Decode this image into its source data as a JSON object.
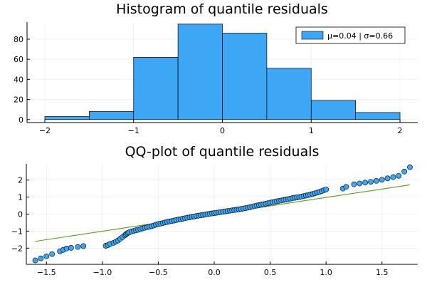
{
  "chart_data": [
    {
      "type": "bar",
      "title": "Histogram of quantile residuals",
      "bin_edges": [
        -2,
        -1.5,
        -1,
        -0.5,
        0,
        0.5,
        1,
        1.5,
        2
      ],
      "values": [
        3,
        8,
        62,
        95,
        86,
        51,
        19,
        7
      ],
      "xlim": [
        -2.2,
        2.2
      ],
      "ylim": [
        -3,
        97
      ],
      "xticks": [
        -2,
        -1,
        0,
        1,
        2
      ],
      "yticks": [
        0,
        20,
        40,
        60,
        80
      ],
      "grid": true,
      "series": [
        {
          "name": "μ=0.04 | σ=0.66",
          "color": "#3da7f5"
        }
      ],
      "legend_position": "top-right"
    },
    {
      "type": "scatter",
      "title": "QQ-plot of quantile residuals",
      "xlim": [
        -1.68,
        1.82
      ],
      "ylim": [
        -2.95,
        2.95
      ],
      "xticks": [
        -1.5,
        -1.0,
        -0.5,
        0.0,
        0.5,
        1.0,
        1.5
      ],
      "yticks": [
        -2,
        -1,
        0,
        1,
        2
      ],
      "grid": true,
      "point_color": "#3da7f5",
      "line_color": "#5a9a1c",
      "reference_line": {
        "x": [
          -1.6,
          1.75
        ],
        "y": [
          -1.6,
          1.72
        ]
      },
      "points": {
        "x": [
          -1.6,
          -1.55,
          -1.5,
          -1.45,
          -1.38,
          -1.35,
          -1.32,
          -1.28,
          -1.22,
          -1.17,
          -0.97,
          -0.95,
          -0.93,
          -0.9,
          -0.88,
          -0.86,
          -0.84,
          -0.82,
          -0.8,
          -0.79,
          -0.78,
          -0.77,
          -0.76,
          -0.74,
          -0.72,
          -0.7,
          -0.68,
          -0.66,
          -0.64,
          -0.62,
          -0.6,
          -0.58,
          -0.56,
          -0.54,
          -0.52,
          -0.5,
          -0.48,
          -0.46,
          -0.44,
          -0.42,
          -0.4,
          -0.38,
          -0.36,
          -0.34,
          -0.32,
          -0.3,
          -0.28,
          -0.26,
          -0.24,
          -0.22,
          -0.2,
          -0.18,
          -0.16,
          -0.14,
          -0.12,
          -0.1,
          -0.08,
          -0.06,
          -0.04,
          -0.02,
          0.0,
          0.02,
          0.04,
          0.06,
          0.08,
          0.1,
          0.12,
          0.14,
          0.16,
          0.18,
          0.2,
          0.22,
          0.24,
          0.26,
          0.28,
          0.3,
          0.32,
          0.34,
          0.36,
          0.38,
          0.4,
          0.42,
          0.44,
          0.46,
          0.48,
          0.5,
          0.52,
          0.54,
          0.56,
          0.58,
          0.6,
          0.62,
          0.64,
          0.66,
          0.68,
          0.7,
          0.72,
          0.74,
          0.76,
          0.78,
          0.8,
          0.82,
          0.84,
          0.86,
          0.88,
          0.9,
          0.92,
          0.94,
          0.96,
          0.98,
          1.0,
          1.15,
          1.18,
          1.25,
          1.3,
          1.35,
          1.4,
          1.45,
          1.5,
          1.55,
          1.6,
          1.65,
          1.7,
          1.75
        ],
        "y": [
          -2.72,
          -2.6,
          -2.48,
          -2.35,
          -2.18,
          -2.1,
          -2.02,
          -1.98,
          -1.93,
          -1.88,
          -1.86,
          -1.82,
          -1.75,
          -1.69,
          -1.62,
          -1.55,
          -1.45,
          -1.35,
          -1.25,
          -1.19,
          -1.14,
          -1.1,
          -1.07,
          -1.02,
          -0.99,
          -0.95,
          -0.92,
          -0.88,
          -0.84,
          -0.8,
          -0.77,
          -0.74,
          -0.71,
          -0.67,
          -0.62,
          -0.58,
          -0.56,
          -0.53,
          -0.49,
          -0.46,
          -0.43,
          -0.41,
          -0.38,
          -0.35,
          -0.32,
          -0.3,
          -0.27,
          -0.24,
          -0.21,
          -0.19,
          -0.16,
          -0.14,
          -0.11,
          -0.09,
          -0.07,
          -0.05,
          -0.02,
          0.0,
          0.02,
          0.04,
          0.06,
          0.08,
          0.1,
          0.12,
          0.14,
          0.16,
          0.18,
          0.2,
          0.22,
          0.24,
          0.26,
          0.28,
          0.3,
          0.33,
          0.35,
          0.38,
          0.41,
          0.44,
          0.47,
          0.5,
          0.53,
          0.56,
          0.58,
          0.61,
          0.64,
          0.67,
          0.7,
          0.72,
          0.75,
          0.78,
          0.8,
          0.83,
          0.86,
          0.88,
          0.91,
          0.94,
          0.96,
          0.98,
          1.0,
          1.03,
          1.06,
          1.09,
          1.12,
          1.15,
          1.18,
          1.22,
          1.26,
          1.3,
          1.35,
          1.4,
          1.45,
          1.5,
          1.6,
          1.75,
          1.8,
          1.85,
          1.9,
          1.95,
          2.02,
          2.1,
          2.17,
          2.25,
          2.5,
          2.75
        ]
      }
    }
  ]
}
